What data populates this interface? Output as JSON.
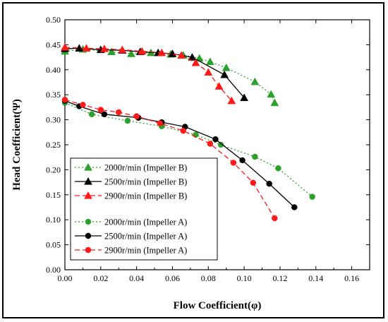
{
  "chart_data": {
    "type": "line",
    "xlabel": "Flow Coefficient(φ)",
    "ylabel": "Head Coefficient(Ψ)",
    "xlim": [
      0.0,
      0.17
    ],
    "ylim": [
      0.0,
      0.5
    ],
    "x_ticks": [
      "0.00",
      "0.02",
      "0.04",
      "0.06",
      "0.08",
      "0.10",
      "0.12",
      "0.14",
      "0.16"
    ],
    "y_ticks": [
      "0.00",
      "0.05",
      "0.10",
      "0.15",
      "0.20",
      "0.25",
      "0.30",
      "0.35",
      "0.40",
      "0.45",
      "0.50"
    ],
    "grid": false,
    "legend_position": "bottom-left",
    "series": [
      {
        "name": "2000r/min (Impeller B)",
        "color": "#2ca02c",
        "marker": "triangle",
        "dash": "dot",
        "x": [
          0.0,
          0.01,
          0.026,
          0.037,
          0.048,
          0.059,
          0.066,
          0.075,
          0.081,
          0.09,
          0.106,
          0.115,
          0.117
        ],
        "y": [
          0.437,
          0.441,
          0.436,
          0.432,
          0.434,
          0.431,
          0.429,
          0.423,
          0.416,
          0.404,
          0.376,
          0.351,
          0.334
        ]
      },
      {
        "name": "2500r/min (Impeller B)",
        "color": "#000000",
        "marker": "triangle",
        "dash": "solid",
        "x": [
          0.0,
          0.008,
          0.02,
          0.032,
          0.042,
          0.052,
          0.06,
          0.071,
          0.089,
          0.1
        ],
        "y": [
          0.442,
          0.443,
          0.44,
          0.439,
          0.436,
          0.434,
          0.432,
          0.425,
          0.39,
          0.344
        ]
      },
      {
        "name": "2900r/min (Impeller B)",
        "color": "#ff1a1a",
        "marker": "triangle",
        "dash": "dash",
        "x": [
          0.0,
          0.012,
          0.022,
          0.032,
          0.043,
          0.054,
          0.065,
          0.073,
          0.08,
          0.086,
          0.093
        ],
        "y": [
          0.445,
          0.443,
          0.442,
          0.44,
          0.437,
          0.434,
          0.429,
          0.414,
          0.395,
          0.367,
          0.338
        ]
      },
      {
        "name": "2000r/min (Impeller A)",
        "color": "#2ca02c",
        "marker": "circle",
        "dash": "dot",
        "x": [
          0.0,
          0.015,
          0.035,
          0.054,
          0.073,
          0.087,
          0.106,
          0.119,
          0.138
        ],
        "y": [
          0.334,
          0.311,
          0.298,
          0.287,
          0.27,
          0.25,
          0.226,
          0.203,
          0.146
        ]
      },
      {
        "name": "2500r/min (Impeller A)",
        "color": "#000000",
        "marker": "circle",
        "dash": "solid",
        "x": [
          0.0,
          0.008,
          0.022,
          0.041,
          0.054,
          0.067,
          0.084,
          0.099,
          0.114,
          0.128
        ],
        "y": [
          0.338,
          0.327,
          0.311,
          0.304,
          0.295,
          0.286,
          0.261,
          0.219,
          0.172,
          0.125
        ]
      },
      {
        "name": "2900r/min (Impeller A)",
        "color": "#ff1a1a",
        "marker": "circle",
        "dash": "dash",
        "x": [
          0.0,
          0.01,
          0.02,
          0.03,
          0.04,
          0.053,
          0.066,
          0.081,
          0.094,
          0.105,
          0.117
        ],
        "y": [
          0.34,
          0.33,
          0.32,
          0.315,
          0.307,
          0.293,
          0.278,
          0.252,
          0.214,
          0.174,
          0.103
        ]
      }
    ]
  }
}
